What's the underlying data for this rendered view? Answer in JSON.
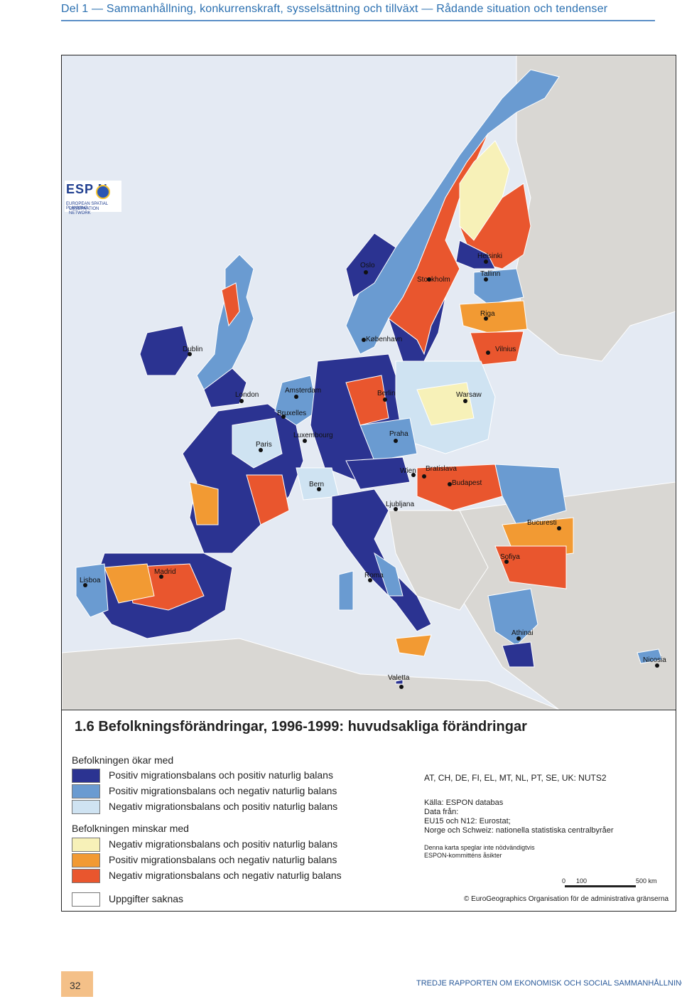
{
  "header": {
    "title": "Del 1 — Sammanhållning, konkurrenskraft, sysselsättning och tillväxt — Rådande situation och tendenser"
  },
  "map": {
    "cities": [
      {
        "name": "Helsinki"
      },
      {
        "name": "Oslo"
      },
      {
        "name": "Stockholm"
      },
      {
        "name": "Tallinn"
      },
      {
        "name": "Riga"
      },
      {
        "name": "København"
      },
      {
        "name": "Dublin"
      },
      {
        "name": "Vilnius"
      },
      {
        "name": "Amsterdam"
      },
      {
        "name": "Berlin"
      },
      {
        "name": "London"
      },
      {
        "name": "Warsaw"
      },
      {
        "name": "Bruxelles"
      },
      {
        "name": "Luxembourg"
      },
      {
        "name": "Praha"
      },
      {
        "name": "Paris"
      },
      {
        "name": "Wien"
      },
      {
        "name": "Bratislava"
      },
      {
        "name": "Budapest"
      },
      {
        "name": "Bern"
      },
      {
        "name": "Ljubljana"
      },
      {
        "name": "Bucuresti"
      },
      {
        "name": "Sofiya"
      },
      {
        "name": "Madrid"
      },
      {
        "name": "Roma"
      },
      {
        "name": "Lisboa"
      },
      {
        "name": "Athinai"
      },
      {
        "name": "Nicosia"
      },
      {
        "name": "Valetta"
      }
    ],
    "logo": {
      "text": "ESP N",
      "subtitle1": "EUROPEAN SPATIAL PLANNING",
      "subtitle2": "OBSERVATION NETWORK"
    }
  },
  "legend": {
    "title": "1.6 Befolkningsförändringar, 1996-1999: huvudsakliga förändringar",
    "group_increase": "Befolkningen ökar med",
    "group_decrease": "Befolkningen minskar med",
    "items_increase": [
      {
        "label": "Positiv migrationsbalans och positiv naturlig balans",
        "color": "#2b3391"
      },
      {
        "label": "Positiv migrationsbalans och negativ naturlig balans",
        "color": "#6a9bd1"
      },
      {
        "label": "Negativ migrationsbalans och positiv naturlig balans",
        "color": "#cfe3f2"
      }
    ],
    "items_decrease": [
      {
        "label": "Negativ migrationsbalans och positiv naturlig balans",
        "color": "#f7f1b8"
      },
      {
        "label": "Positiv migrationsbalans och negativ naturlig balans",
        "color": "#f29a33"
      },
      {
        "label": "Negativ migrationsbalans och negativ naturlig balans",
        "color": "#e9562e"
      }
    ],
    "no_data": {
      "label": "Uppgifter saknas",
      "color": "#ffffff"
    },
    "nuts": "AT, CH, DE, FI, EL, MT, NL, PT, SE, UK: NUTS2",
    "source_lines": [
      "Källa: ESPON databas",
      "Data från:",
      "EU15 och N12: Eurostat;",
      "Norge och Schweiz: nationella statistiska centralbyråer"
    ],
    "disclaimer_lines": [
      "Denna karta speglar inte nödvändigtvis",
      "ESPON-kommitténs åsikter"
    ],
    "scale": {
      "zero": "0",
      "mid": "100",
      "end": "500 km"
    },
    "copyright": "© EuroGeographics Organisation för de administrativa gränserna"
  },
  "footer": {
    "page_number": "32",
    "text": "TREDJE RAPPORTEN OM EKONOMISK OCH SOCIAL SAMMANHÅLLNING"
  }
}
